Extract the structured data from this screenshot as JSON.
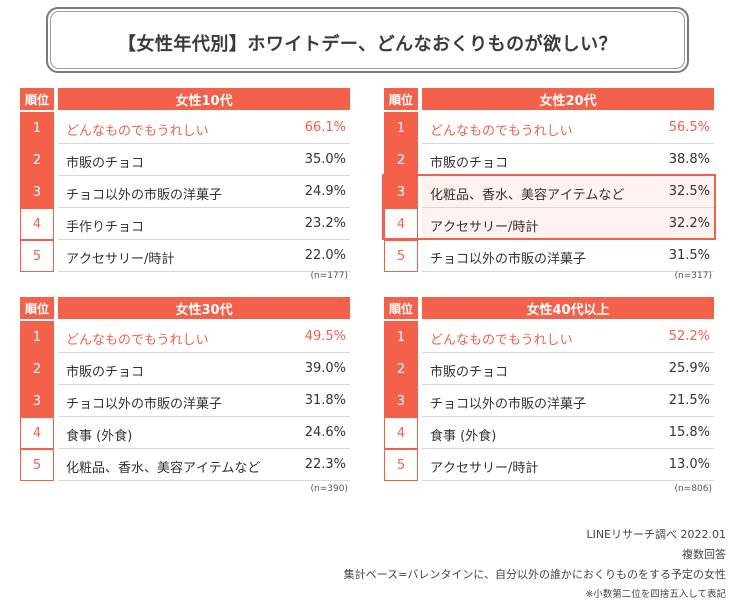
{
  "title": "【女性年代別】ホワイトデー、どんなおくりものが欲しい？",
  "header_rank_label": "順位",
  "colors": {
    "accent": "#f4614a",
    "highlight_bg": "#fdf2f0"
  },
  "chart_data": [
    {
      "type": "table",
      "group": "女性10代",
      "n": "(n=177)",
      "ranks": [
        "1",
        "2",
        "3",
        "4",
        "5"
      ],
      "items": [
        "どんなものでもうれしい",
        "市販のチョコ",
        "チョコ以外の市販の洋菓子",
        "手作りチョコ",
        "アクセサリー/時計"
      ],
      "values": [
        66.1,
        35.0,
        24.9,
        23.2,
        22.0
      ],
      "value_labels": [
        "66.1%",
        "35.0%",
        "24.9%",
        "23.2%",
        "22.0%"
      ]
    },
    {
      "type": "table",
      "group": "女性20代",
      "n": "(n=317)",
      "ranks": [
        "1",
        "2",
        "3",
        "4",
        "5"
      ],
      "items": [
        "どんなものでもうれしい",
        "市販のチョコ",
        "化粧品、香水、美容アイテムなど",
        "アクセサリー/時計",
        "チョコ以外の市販の洋菓子"
      ],
      "values": [
        56.5,
        38.8,
        32.5,
        32.2,
        31.5
      ],
      "value_labels": [
        "56.5%",
        "38.8%",
        "32.5%",
        "32.2%",
        "31.5%"
      ]
    },
    {
      "type": "table",
      "group": "女性30代",
      "n": "(n=390)",
      "ranks": [
        "1",
        "2",
        "3",
        "4",
        "5"
      ],
      "items": [
        "どんなものでもうれしい",
        "市販のチョコ",
        "チョコ以外の市販の洋菓子",
        "食事 (外食)",
        "化粧品、香水、美容アイテムなど"
      ],
      "values": [
        49.5,
        39.0,
        31.8,
        24.6,
        22.3
      ],
      "value_labels": [
        "49.5%",
        "39.0%",
        "31.8%",
        "24.6%",
        "22.3%"
      ]
    },
    {
      "type": "table",
      "group": "女性40代以上",
      "n": "(n=806)",
      "ranks": [
        "1",
        "2",
        "3",
        "4",
        "5"
      ],
      "items": [
        "どんなものでもうれしい",
        "市販のチョコ",
        "チョコ以外の市販の洋菓子",
        "食事 (外食)",
        "アクセサリー/時計"
      ],
      "values": [
        52.2,
        25.9,
        21.5,
        15.8,
        13.0
      ],
      "value_labels": [
        "52.2%",
        "25.9%",
        "21.5%",
        "15.8%",
        "13.0%"
      ]
    }
  ],
  "notes": {
    "source": "LINEリサーチ調べ 2022.01",
    "multiple": "複数回答",
    "base": "集計ベース=バレンタインに、自分以外の誰かにおくりものをする予定の女性",
    "rounding": "※小数第二位を四捨五入して表記"
  }
}
